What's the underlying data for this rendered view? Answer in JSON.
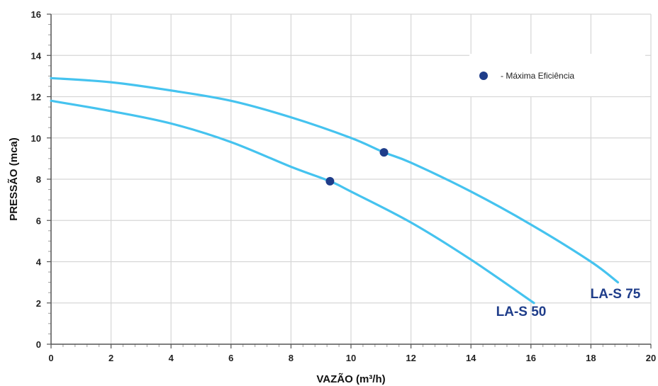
{
  "chart_data": {
    "type": "line",
    "xlabel": "VAZÃO (m³/h)",
    "ylabel": "PRESSÃO (mca)",
    "xlim": [
      0,
      20
    ],
    "ylim": [
      0,
      16
    ],
    "x_ticks": [
      0,
      2,
      4,
      6,
      8,
      10,
      12,
      14,
      16,
      18,
      20
    ],
    "y_ticks": [
      0,
      2,
      4,
      6,
      8,
      10,
      12,
      14,
      16
    ],
    "grid": true,
    "line_color": "#45c3ef",
    "marker_color": "#1f3d8a",
    "label_color": "#1f3d8a",
    "series": [
      {
        "name": "LA-S 50",
        "x": [
          0,
          2,
          4,
          6,
          8,
          9.3,
          10,
          12,
          14,
          16.1
        ],
        "y": [
          11.8,
          11.3,
          10.7,
          9.8,
          8.6,
          7.9,
          7.4,
          5.9,
          4.1,
          2.0
        ],
        "max_efficiency_point": {
          "x": 9.3,
          "y": 7.9
        }
      },
      {
        "name": "LA-S 75",
        "x": [
          0,
          2,
          4,
          6,
          8,
          10,
          11.1,
          12,
          14,
          16,
          18,
          18.9
        ],
        "y": [
          12.9,
          12.7,
          12.3,
          11.8,
          11.0,
          10.0,
          9.3,
          8.8,
          7.4,
          5.8,
          4.0,
          3.0
        ],
        "max_efficiency_point": {
          "x": 11.1,
          "y": 9.3
        }
      }
    ],
    "legend": {
      "position": "top-right",
      "entries": [
        "- Máxima Eficiência"
      ]
    }
  }
}
